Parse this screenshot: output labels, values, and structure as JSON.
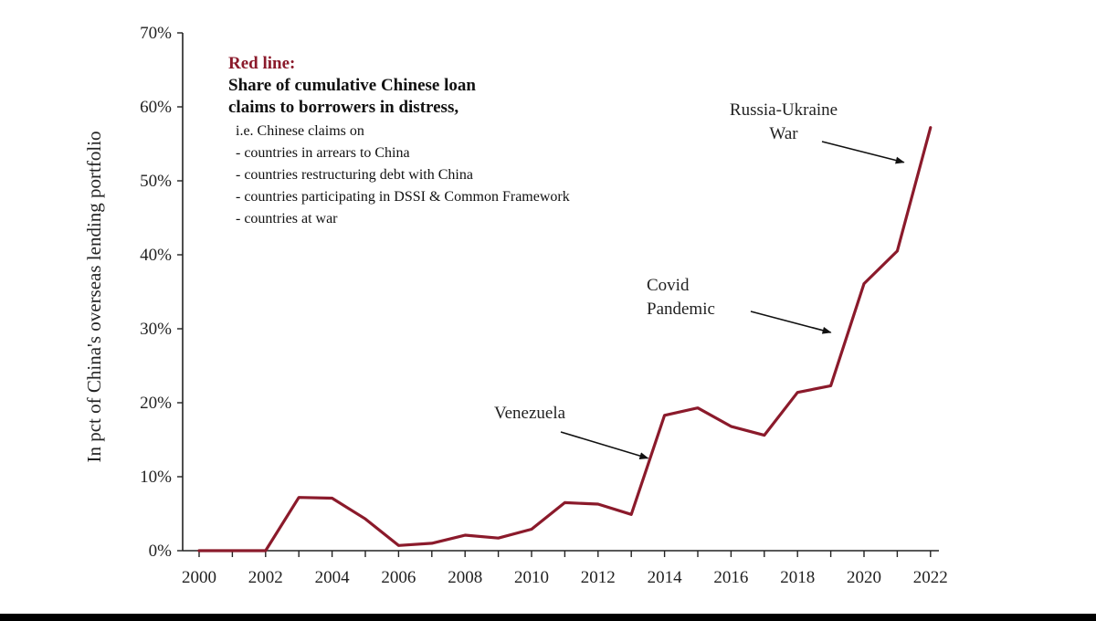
{
  "chart_data": {
    "type": "line",
    "ylabel": "In pct of China's overseas lending portfolio",
    "ylim": [
      0,
      70
    ],
    "yticks": [
      "0%",
      "10%",
      "20%",
      "30%",
      "40%",
      "50%",
      "60%",
      "70%"
    ],
    "xticks": [
      "2000",
      "2002",
      "2004",
      "2006",
      "2008",
      "2010",
      "2012",
      "2014",
      "2016",
      "2018",
      "2020",
      "2022"
    ],
    "series": [
      {
        "color": "#8b1a2b",
        "x": [
          2000,
          2001,
          2002,
          2003,
          2004,
          2005,
          2006,
          2007,
          2008,
          2009,
          2010,
          2011,
          2012,
          2013,
          2014,
          2015,
          2016,
          2017,
          2018,
          2019,
          2020,
          2021,
          2022
        ],
        "values": [
          0,
          0,
          0,
          7.2,
          7.1,
          4.3,
          0.7,
          1.0,
          2.1,
          1.7,
          2.9,
          6.5,
          6.3,
          4.9,
          18.3,
          19.3,
          16.8,
          15.6,
          21.4,
          22.3,
          36.1,
          40.5,
          57.2
        ]
      }
    ],
    "legend": {
      "title": "Red line:",
      "description_line1": "Share of cumulative Chinese loan",
      "description_line2": "claims to borrowers in distress,",
      "note": "i.e. Chinese claims on",
      "items": [
        "- countries in arrears to China",
        "- countries restructuring debt with China",
        "- countries participating in DSSI & Common Framework",
        "- countries at war"
      ]
    },
    "annotations": [
      {
        "lines": [
          "Venezuela"
        ],
        "target_x": 2013.5,
        "target_y": 12.5
      },
      {
        "lines": [
          "Covid",
          "Pandemic"
        ],
        "target_x": 2019,
        "target_y": 29.5
      },
      {
        "lines": [
          "Russia-Ukraine",
          "War"
        ],
        "target_x": 2021.2,
        "target_y": 52.5
      }
    ],
    "grid": false
  }
}
